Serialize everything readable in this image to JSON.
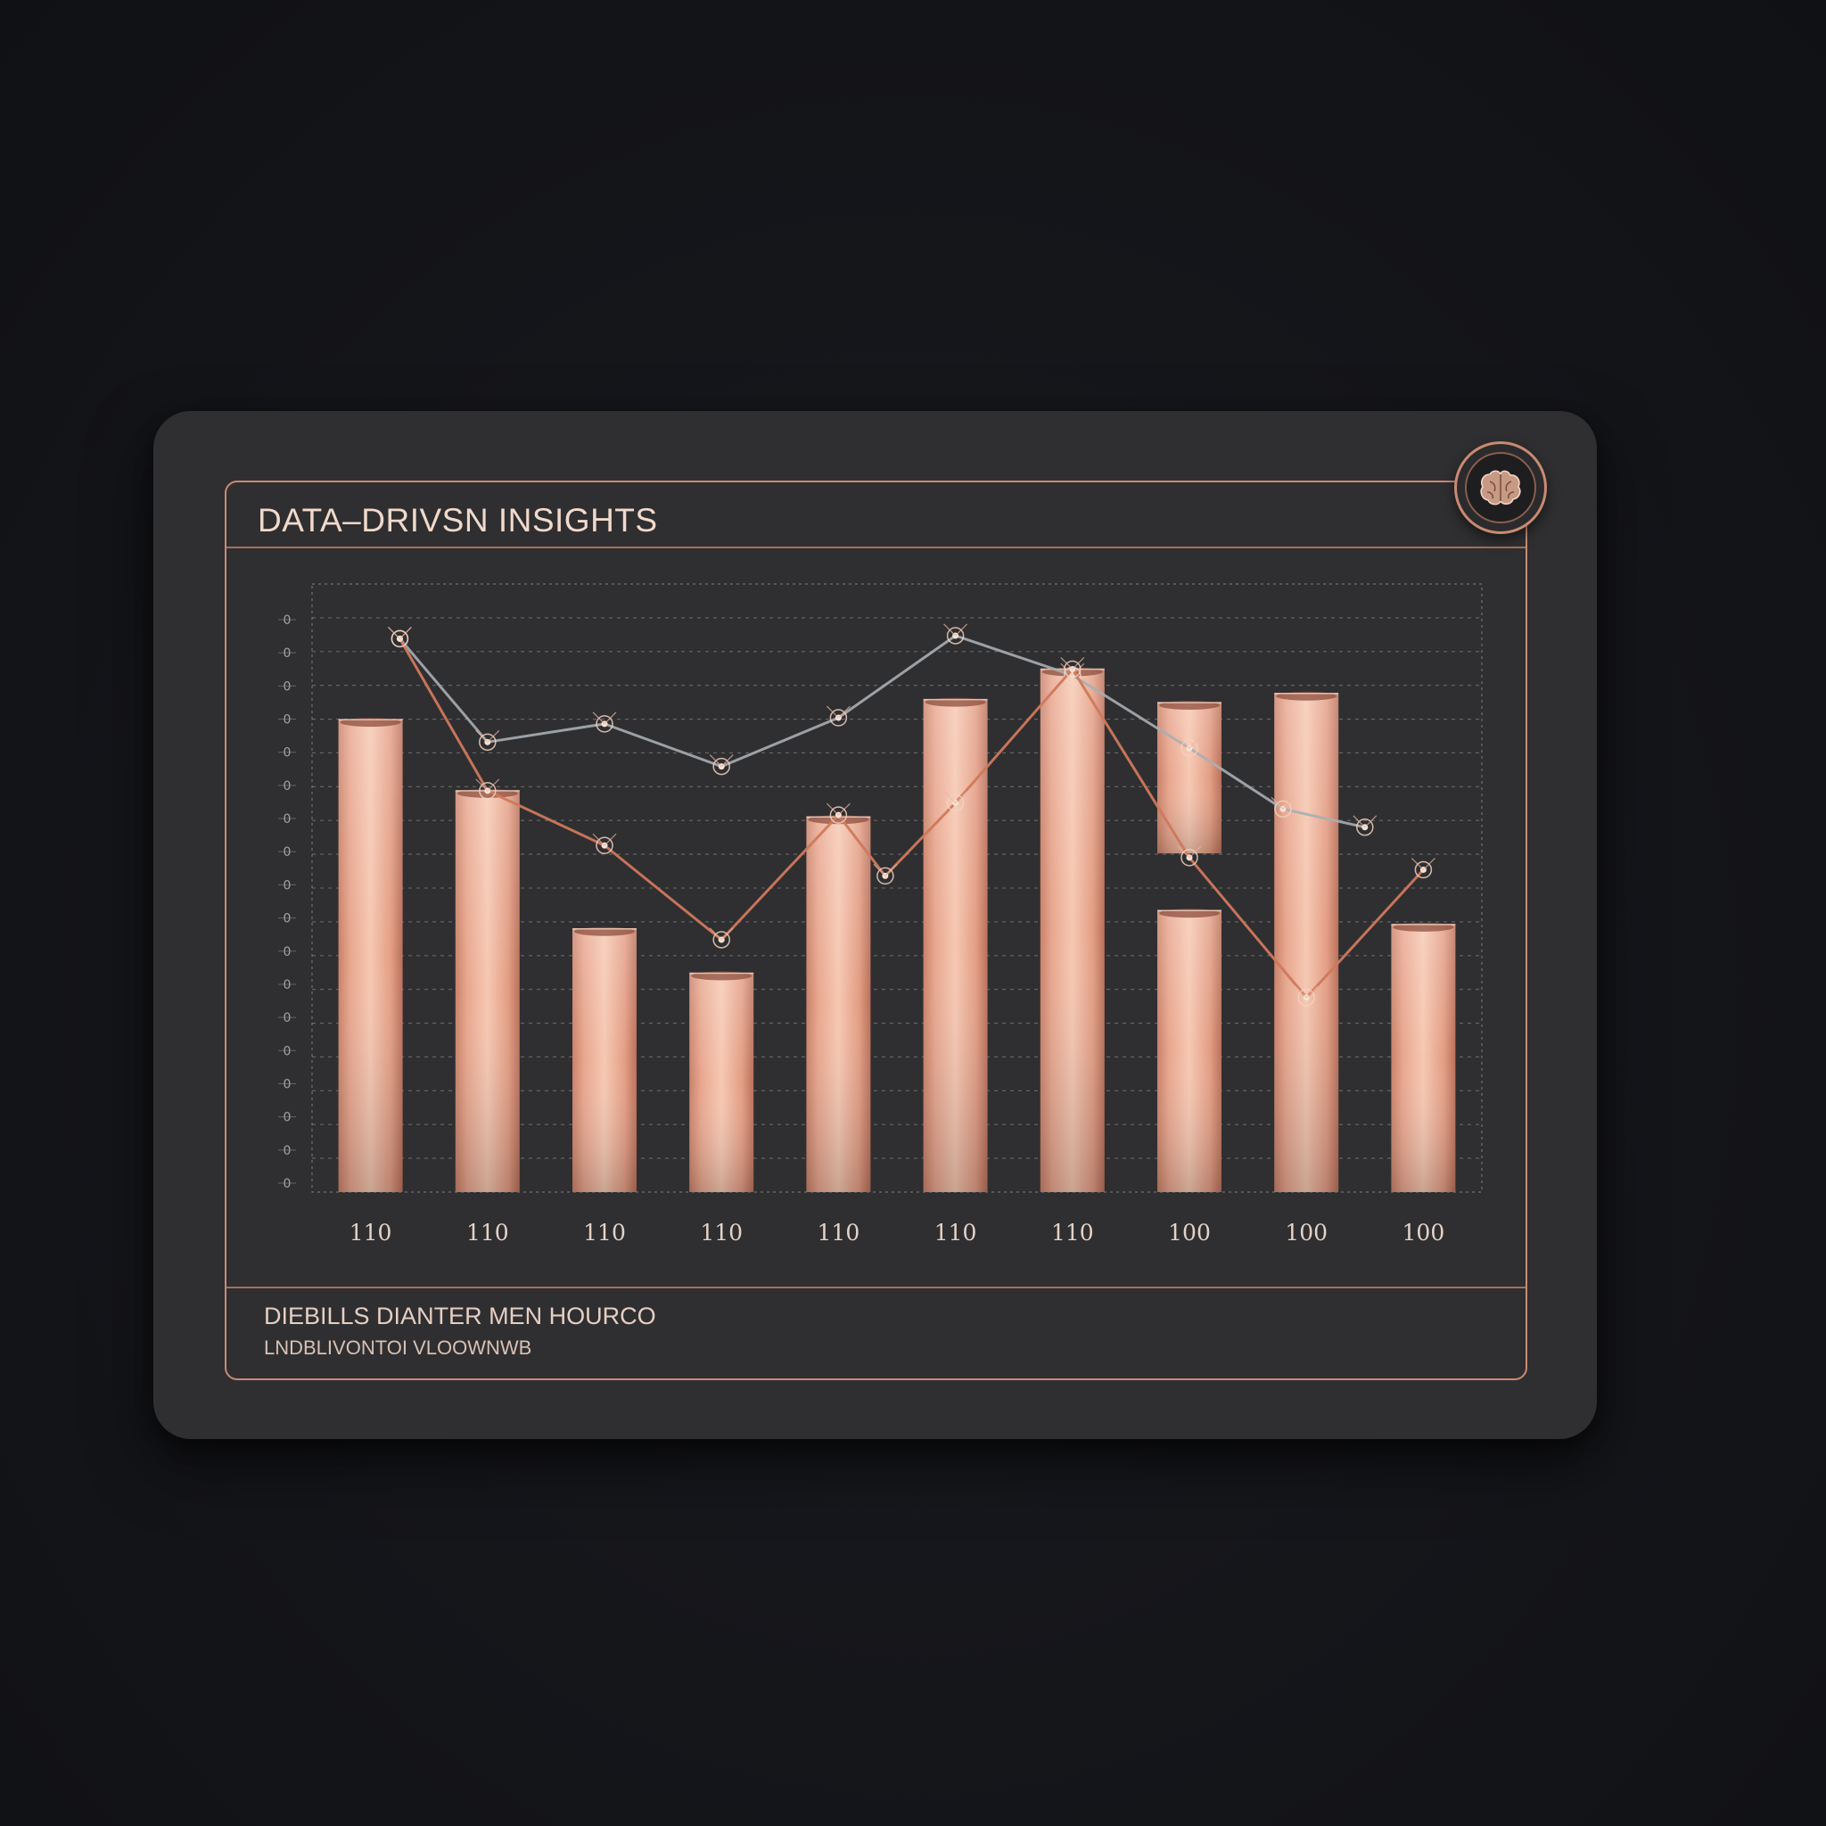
{
  "card": {
    "title": "DATA–DRIVSN INSIGHTS",
    "footer_line_1": "DIEBILLS DIANTER MEN HOURCO",
    "footer_line_2": "LNDBLIVONTOI VLOOWNWB",
    "badge_icon": "brain-icon"
  },
  "colors": {
    "background": "#14151a",
    "card": "#2f2f31",
    "accent": "#c98a72",
    "bar_light": "#f6c8b2",
    "bar_dark": "#c98169",
    "line_copper": "#d0785c",
    "line_grey": "#a9aeb4"
  },
  "chart_data": {
    "type": "bar",
    "title": "DATA–DRIVSN INSIGHTS",
    "categories": [
      "110",
      "110",
      "110",
      "110",
      "110",
      "110",
      "110",
      "100",
      "100",
      "100"
    ],
    "y_tick_labels": [
      "0",
      "0",
      "0",
      "0",
      "0",
      "0",
      "0",
      "0",
      "0",
      "0",
      "0",
      "0",
      "0",
      "0",
      "0",
      "0",
      "0",
      "0"
    ],
    "ylim": [
      0,
      100
    ],
    "grid": true,
    "bars": [
      {
        "top": 77.7,
        "notch": null
      },
      {
        "top": 66.0,
        "notch": null
      },
      {
        "top": 43.3,
        "notch": null
      },
      {
        "top": 36.0,
        "notch": null
      },
      {
        "top": 61.7,
        "notch": null
      },
      {
        "top": 81.0,
        "notch": null
      },
      {
        "top": 86.0,
        "notch": null
      },
      {
        "top": 80.5,
        "notch": [
          55.7,
          46.3
        ]
      },
      {
        "top": 82.0,
        "notch": null
      },
      {
        "top": 44.0,
        "notch": null
      }
    ],
    "series": [
      {
        "x": [
          0.25,
          1.0,
          2.0,
          3.0,
          4.0,
          5.0,
          6.0,
          7.0,
          7.8,
          8.5
        ],
        "y": [
          91.0,
          74.0,
          77.0,
          70.0,
          78.0,
          91.5,
          85.0,
          73.0,
          63.0,
          60.0
        ]
      },
      {
        "x": [
          0.25,
          1.0,
          2.0,
          3.0,
          4.0,
          4.4,
          5.0,
          6.0,
          7.0,
          8.0,
          9.0
        ],
        "y": [
          91.0,
          66.0,
          57.0,
          41.5,
          62.0,
          52.0,
          64.0,
          86.0,
          55.0,
          32.0,
          53.0
        ]
      }
    ]
  }
}
